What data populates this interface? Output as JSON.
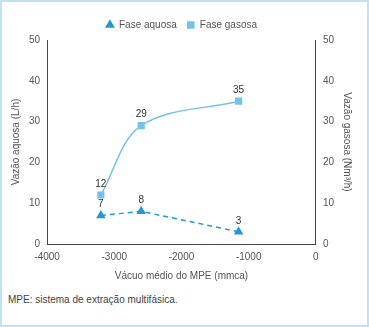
{
  "chart_data": {
    "type": "line",
    "x_label": "Vácuo médio do MPE (mmca)",
    "y_label": "Vazão aquosa (L/h)",
    "y2_label": "Vazão gasosa (Nm³/h)",
    "caption": "MPE: sistema de extração multifásica.",
    "x": [
      -3200,
      -2600,
      -1150
    ],
    "series": [
      {
        "name": "Fase aquosa",
        "color": "#1f9ad6",
        "marker": "triangle",
        "line_style": "dashed",
        "values": [
          7,
          8,
          3
        ]
      },
      {
        "name": "Fase gasosa",
        "color": "#74c2ea",
        "marker": "square",
        "line_style": "solid",
        "axis": "y2",
        "values": [
          12,
          29,
          35
        ]
      }
    ],
    "xlim": [
      -4000,
      0
    ],
    "xticks": [
      -4000,
      -3000,
      -2000,
      -1000,
      0
    ],
    "ylim": [
      0,
      50
    ],
    "yticks": [
      0,
      10,
      20,
      30,
      40,
      50
    ],
    "y2lim": [
      0,
      50
    ],
    "y2ticks": [
      0,
      10,
      20,
      30,
      40,
      50
    ],
    "grid": false,
    "legend": "top",
    "data_labels": true
  }
}
